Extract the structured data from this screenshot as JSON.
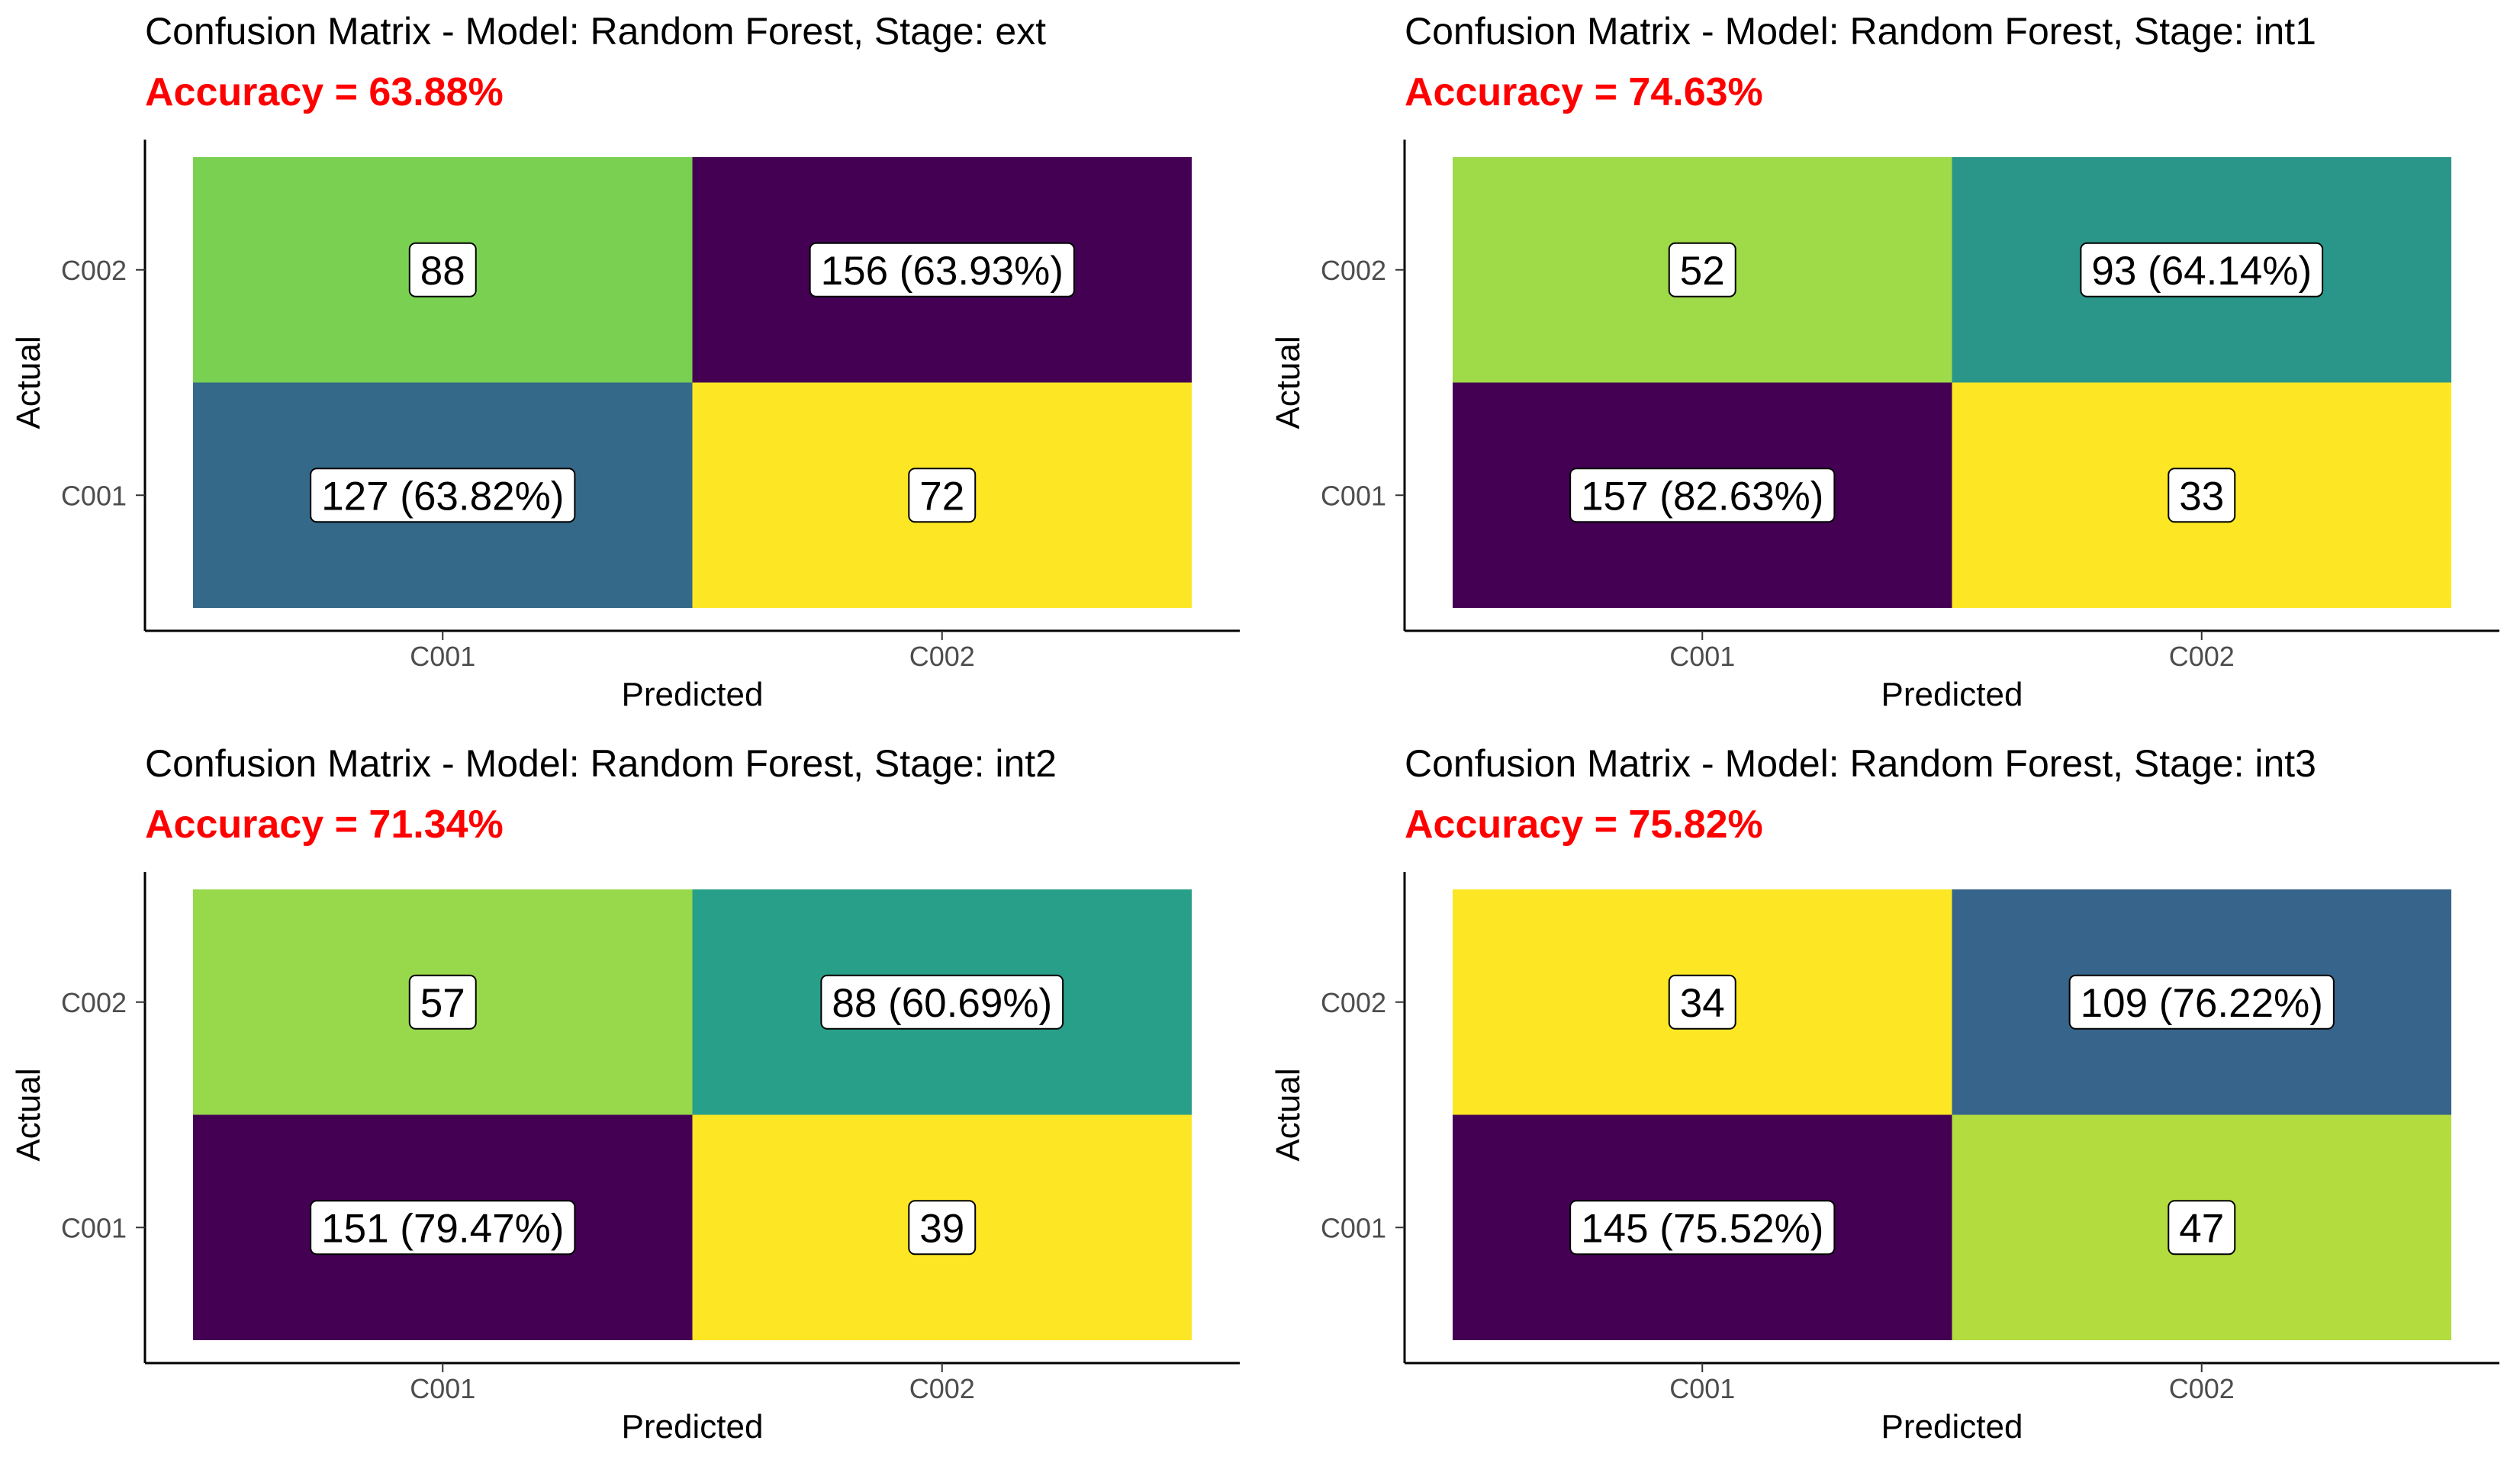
{
  "chart_data": [
    {
      "type": "heatmap",
      "title": "Confusion Matrix - Model: Random Forest, Stage: ext",
      "subtitle": "Accuracy = 63.88%",
      "xlabel": "Predicted",
      "ylabel": "Actual",
      "x_categories": [
        "C001",
        "C002"
      ],
      "y_categories": [
        "C001",
        "C002"
      ],
      "cells": [
        {
          "actual": "C002",
          "predicted": "C001",
          "count": 88,
          "label": "88",
          "color": "#7AD151"
        },
        {
          "actual": "C002",
          "predicted": "C002",
          "count": 156,
          "label": "156 (63.93%)",
          "color": "#440154"
        },
        {
          "actual": "C001",
          "predicted": "C001",
          "count": 127,
          "label": "127 (63.82%)",
          "color": "#35698A"
        },
        {
          "actual": "C001",
          "predicted": "C002",
          "count": 72,
          "label": "72",
          "color": "#FDE725"
        }
      ]
    },
    {
      "type": "heatmap",
      "title": "Confusion Matrix - Model: Random Forest, Stage: int1",
      "subtitle": "Accuracy = 74.63%",
      "xlabel": "Predicted",
      "ylabel": "Actual",
      "x_categories": [
        "C001",
        "C002"
      ],
      "y_categories": [
        "C001",
        "C002"
      ],
      "cells": [
        {
          "actual": "C002",
          "predicted": "C001",
          "count": 52,
          "label": "52",
          "color": "#9FDA49"
        },
        {
          "actual": "C002",
          "predicted": "C002",
          "count": 93,
          "label": "93 (64.14%)",
          "color": "#2A968A"
        },
        {
          "actual": "C001",
          "predicted": "C001",
          "count": 157,
          "label": "157 (82.63%)",
          "color": "#440154"
        },
        {
          "actual": "C001",
          "predicted": "C002",
          "count": 33,
          "label": "33",
          "color": "#FDE725"
        }
      ]
    },
    {
      "type": "heatmap",
      "title": "Confusion Matrix - Model: Random Forest, Stage: int2",
      "subtitle": "Accuracy = 71.34%",
      "xlabel": "Predicted",
      "ylabel": "Actual",
      "x_categories": [
        "C001",
        "C002"
      ],
      "y_categories": [
        "C001",
        "C002"
      ],
      "cells": [
        {
          "actual": "C002",
          "predicted": "C001",
          "count": 57,
          "label": "57",
          "color": "#98D84B"
        },
        {
          "actual": "C002",
          "predicted": "C002",
          "count": 88,
          "label": "88 (60.69%)",
          "color": "#289F89"
        },
        {
          "actual": "C001",
          "predicted": "C001",
          "count": 151,
          "label": "151 (79.47%)",
          "color": "#440154"
        },
        {
          "actual": "C001",
          "predicted": "C002",
          "count": 39,
          "label": "39",
          "color": "#FDE725"
        }
      ]
    },
    {
      "type": "heatmap",
      "title": "Confusion Matrix - Model: Random Forest, Stage: int3",
      "subtitle": "Accuracy = 75.82%",
      "xlabel": "Predicted",
      "ylabel": "Actual",
      "x_categories": [
        "C001",
        "C002"
      ],
      "y_categories": [
        "C001",
        "C002"
      ],
      "cells": [
        {
          "actual": "C002",
          "predicted": "C001",
          "count": 34,
          "label": "34",
          "color": "#FDE725"
        },
        {
          "actual": "C002",
          "predicted": "C002",
          "count": 109,
          "label": "109 (76.22%)",
          "color": "#36648B"
        },
        {
          "actual": "C001",
          "predicted": "C001",
          "count": 145,
          "label": "145 (75.52%)",
          "color": "#440154"
        },
        {
          "actual": "C001",
          "predicted": "C002",
          "count": 47,
          "label": "47",
          "color": "#B3DC3F"
        }
      ]
    }
  ],
  "colors": {
    "accuracy_text": "#FF0000",
    "title_text": "#000000",
    "tick_text": "#4D4D4D",
    "axis_line": "#000000"
  }
}
